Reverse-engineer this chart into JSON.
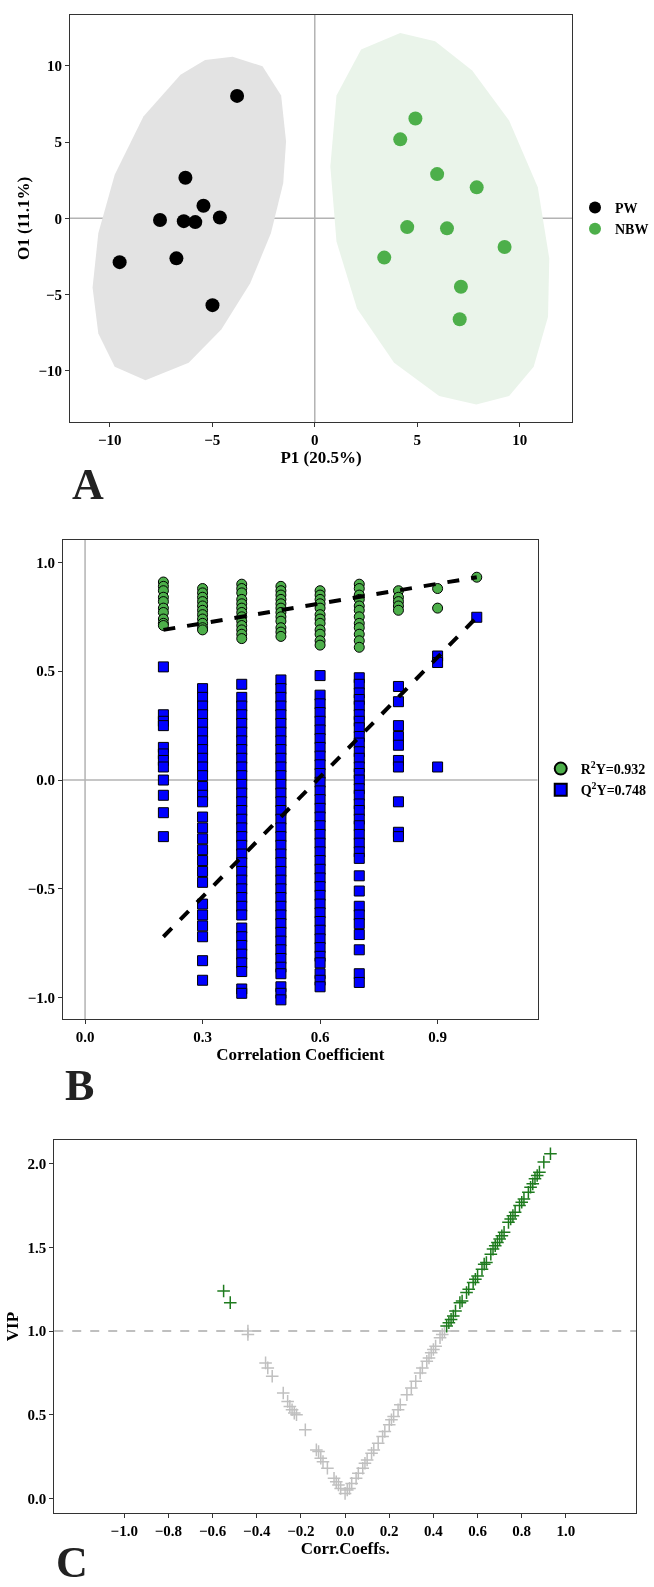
{
  "chart_data": [
    {
      "type": "scatter",
      "xlabel": "P1 (20.5%)",
      "ylabel": "O1 (11.1%)",
      "annotations": [
        "A"
      ],
      "grid": false,
      "legend": "right",
      "xlim": [
        -11.94,
        12.55
      ],
      "ylim": [
        -13.37,
        13.34
      ],
      "xticks": [
        {
          "value": -10,
          "label": "−10"
        },
        {
          "value": -5,
          "label": "−5"
        },
        0,
        5,
        10
      ],
      "yticks": [
        {
          "value": -10,
          "label": "−10"
        },
        {
          "value": -5,
          "label": "−5"
        },
        0,
        5,
        10
      ],
      "ref_lines": [
        {
          "axis": "x",
          "value": 0,
          "color": "#b3b3b3"
        },
        {
          "axis": "y",
          "value": 0,
          "color": "#b3b3b3"
        }
      ],
      "series": [
        {
          "type": "area",
          "color": "#e3e3e3",
          "x": [
            -4.01,
            -2.55,
            -1.64,
            -1.4,
            -1.54,
            -2.14,
            -3.15,
            -4.55,
            -6.15,
            -8.26,
            -9.76,
            -10.56,
            -10.84,
            -10.56,
            -9.76,
            -8.36,
            -6.55,
            -5.35
          ],
          "values": [
            10.6,
            9.97,
            8.05,
            5.04,
            2.3,
            -0.99,
            -4.27,
            -7.29,
            -9.48,
            -10.63,
            -9.75,
            -7.56,
            -4.55,
            -0.99,
            2.85,
            6.68,
            9.42,
            10.38
          ]
        },
        {
          "type": "area",
          "color": "#eaf4ea",
          "x": [
            4.17,
            5.87,
            7.68,
            9.48,
            10.88,
            11.44,
            11.38,
            10.68,
            9.48,
            7.88,
            6.07,
            3.87,
            2.06,
            1.06,
            0.76,
            1.06,
            2.26
          ],
          "values": [
            12.16,
            11.62,
            9.7,
            6.41,
            2.03,
            -2.63,
            -6.47,
            -9.75,
            -11.67,
            -12.22,
            -11.67,
            -9.48,
            -5.92,
            -1.53,
            3.4,
            8.05,
            11.07
          ]
        },
        {
          "name": "PW",
          "color": "#000000",
          "marker": "circle",
          "x": [
            -3.79,
            -6.31,
            -5.43,
            -7.55,
            -6.39,
            -5.83,
            -4.63,
            -9.52,
            -6.75,
            -4.99
          ],
          "values": [
            8.03,
            2.66,
            0.82,
            -0.11,
            -0.19,
            -0.25,
            0.05,
            -2.88,
            -2.63,
            -5.7
          ]
        },
        {
          "name": "NBW",
          "color": "#4daf4a",
          "marker": "circle",
          "x": [
            4.91,
            4.17,
            5.97,
            7.9,
            4.51,
            6.45,
            9.26,
            3.39,
            7.13,
            7.07
          ],
          "values": [
            6.55,
            5.18,
            2.9,
            2.03,
            -0.58,
            -0.66,
            -1.89,
            -2.58,
            -4.49,
            -6.63
          ]
        }
      ]
    },
    {
      "type": "scatter",
      "xlabel": "Correlation Coefficient",
      "annotations": [
        "B"
      ],
      "grid": false,
      "legend": "right",
      "xlim": [
        -0.056,
        1.155
      ],
      "ylim": [
        -1.098,
        1.103
      ],
      "xticks": [
        {
          "value": 0,
          "label": "0.0"
        },
        0.3,
        0.6,
        0.9
      ],
      "yticks": [
        {
          "value": -1,
          "label": "−1.0"
        },
        {
          "value": -0.5,
          "label": "−0.5"
        },
        {
          "value": 0,
          "label": "0.0"
        },
        0.5,
        {
          "value": 1,
          "label": "1.0"
        }
      ],
      "ref_lines": [
        {
          "axis": "x",
          "value": 0,
          "color": "#b3b3b3"
        },
        {
          "axis": "y",
          "value": 0,
          "color": "#b3b3b3"
        }
      ],
      "series": [
        {
          "name": "R$^{2}$Y=0.932",
          "color": "#4daf4a",
          "marker": "circle",
          "x": [
            0.2,
            0.2,
            0.2,
            0.2,
            0.2,
            0.2,
            0.2,
            0.2,
            0.2,
            0.2,
            0.3,
            0.3,
            0.3,
            0.3,
            0.3,
            0.3,
            0.3,
            0.3,
            0.3,
            0.3,
            0.3,
            0.4,
            0.4,
            0.4,
            0.4,
            0.4,
            0.4,
            0.4,
            0.4,
            0.4,
            0.4,
            0.4,
            0.4,
            0.4,
            0.5,
            0.5,
            0.5,
            0.5,
            0.5,
            0.5,
            0.5,
            0.5,
            0.5,
            0.5,
            0.5,
            0.5,
            0.6,
            0.6,
            0.6,
            0.6,
            0.6,
            0.6,
            0.6,
            0.6,
            0.6,
            0.6,
            0.6,
            0.6,
            0.7,
            0.7,
            0.7,
            0.7,
            0.7,
            0.7,
            0.7,
            0.7,
            0.7,
            0.7,
            0.7,
            0.7,
            0.8,
            0.8,
            0.8,
            0.8,
            0.8,
            0.9,
            0.9,
            1.0
          ],
          "values": [
            0.91,
            0.89,
            0.87,
            0.84,
            0.82,
            0.79,
            0.77,
            0.74,
            0.72,
            0.71,
            0.88,
            0.86,
            0.84,
            0.82,
            0.8,
            0.78,
            0.76,
            0.74,
            0.72,
            0.7,
            0.69,
            0.9,
            0.88,
            0.86,
            0.83,
            0.81,
            0.79,
            0.77,
            0.75,
            0.73,
            0.71,
            0.69,
            0.67,
            0.65,
            0.89,
            0.87,
            0.85,
            0.83,
            0.81,
            0.79,
            0.77,
            0.75,
            0.73,
            0.7,
            0.68,
            0.66,
            0.87,
            0.85,
            0.83,
            0.81,
            0.79,
            0.76,
            0.74,
            0.72,
            0.69,
            0.67,
            0.64,
            0.62,
            0.9,
            0.88,
            0.85,
            0.83,
            0.8,
            0.78,
            0.75,
            0.72,
            0.7,
            0.67,
            0.64,
            0.61,
            0.87,
            0.84,
            0.82,
            0.8,
            0.78,
            0.88,
            0.79,
            0.932
          ]
        },
        {
          "name": "Q$^{2}$Y=0.748",
          "color": "#0000ff",
          "marker": "square",
          "x": [
            0.2,
            0.2,
            0.2,
            0.2,
            0.2,
            0.2,
            0.2,
            0.2,
            0.2,
            0.2,
            0.2,
            0.2,
            0.3,
            0.3,
            0.3,
            0.3,
            0.3,
            0.3,
            0.3,
            0.3,
            0.3,
            0.3,
            0.3,
            0.3,
            0.3,
            0.3,
            0.3,
            0.3,
            0.3,
            0.3,
            0.3,
            0.3,
            0.3,
            0.3,
            0.3,
            0.3,
            0.3,
            0.3,
            0.3,
            0.4,
            0.4,
            0.4,
            0.4,
            0.4,
            0.4,
            0.4,
            0.4,
            0.4,
            0.4,
            0.4,
            0.4,
            0.4,
            0.4,
            0.4,
            0.4,
            0.4,
            0.4,
            0.4,
            0.4,
            0.4,
            0.4,
            0.4,
            0.4,
            0.4,
            0.4,
            0.4,
            0.4,
            0.4,
            0.4,
            0.4,
            0.4,
            0.4,
            0.4,
            0.4,
            0.5,
            0.5,
            0.5,
            0.5,
            0.5,
            0.5,
            0.5,
            0.5,
            0.5,
            0.5,
            0.5,
            0.5,
            0.5,
            0.5,
            0.5,
            0.5,
            0.5,
            0.5,
            0.5,
            0.5,
            0.5,
            0.5,
            0.5,
            0.5,
            0.5,
            0.5,
            0.5,
            0.5,
            0.5,
            0.5,
            0.5,
            0.5,
            0.5,
            0.5,
            0.5,
            0.5,
            0.5,
            0.5,
            0.6,
            0.6,
            0.6,
            0.6,
            0.6,
            0.6,
            0.6,
            0.6,
            0.6,
            0.6,
            0.6,
            0.6,
            0.6,
            0.6,
            0.6,
            0.6,
            0.6,
            0.6,
            0.6,
            0.6,
            0.6,
            0.6,
            0.6,
            0.6,
            0.6,
            0.6,
            0.6,
            0.6,
            0.6,
            0.6,
            0.6,
            0.6,
            0.6,
            0.6,
            0.6,
            0.6,
            0.7,
            0.7,
            0.7,
            0.7,
            0.7,
            0.7,
            0.7,
            0.7,
            0.7,
            0.7,
            0.7,
            0.7,
            0.7,
            0.7,
            0.7,
            0.7,
            0.7,
            0.7,
            0.7,
            0.7,
            0.7,
            0.7,
            0.7,
            0.7,
            0.7,
            0.7,
            0.7,
            0.7,
            0.7,
            0.7,
            0.7,
            0.7,
            0.7,
            0.7,
            0.8,
            0.8,
            0.8,
            0.8,
            0.8,
            0.8,
            0.8,
            0.8,
            0.8,
            0.8,
            0.9,
            0.9,
            0.9,
            1.0
          ],
          "values": [
            0.52,
            0.3,
            0.27,
            0.25,
            0.15,
            0.12,
            0.09,
            0.06,
            0.0,
            -0.07,
            -0.15,
            -0.26,
            0.42,
            0.38,
            0.34,
            0.3,
            0.26,
            0.22,
            0.18,
            0.14,
            0.1,
            0.06,
            0.02,
            -0.03,
            -0.07,
            -0.1,
            -0.17,
            -0.22,
            -0.27,
            -0.32,
            -0.37,
            -0.42,
            -0.47,
            -0.57,
            -0.62,
            -0.67,
            -0.72,
            -0.83,
            -0.92,
            0.44,
            0.38,
            0.34,
            0.3,
            0.26,
            0.22,
            0.18,
            0.14,
            0.1,
            0.06,
            0.02,
            -0.02,
            -0.06,
            -0.1,
            -0.14,
            -0.18,
            -0.22,
            -0.26,
            -0.3,
            -0.34,
            -0.38,
            -0.42,
            -0.46,
            -0.5,
            -0.54,
            -0.58,
            -0.62,
            -0.68,
            -0.72,
            -0.76,
            -0.8,
            -0.84,
            -0.88,
            -0.96,
            -0.98,
            0.46,
            0.42,
            0.38,
            0.34,
            0.3,
            0.26,
            0.22,
            0.18,
            0.14,
            0.1,
            0.06,
            0.02,
            -0.02,
            -0.06,
            -0.1,
            -0.14,
            -0.18,
            -0.22,
            -0.26,
            -0.3,
            -0.34,
            -0.38,
            -0.42,
            -0.46,
            -0.5,
            -0.54,
            -0.58,
            -0.62,
            -0.66,
            -0.7,
            -0.74,
            -0.78,
            -0.82,
            -0.86,
            -0.89,
            -0.95,
            -0.98,
            -1.01,
            0.48,
            0.39,
            0.35,
            0.31,
            0.27,
            0.23,
            0.19,
            0.15,
            0.11,
            0.07,
            0.03,
            -0.01,
            -0.05,
            -0.09,
            -0.13,
            -0.17,
            -0.21,
            -0.25,
            -0.29,
            -0.33,
            -0.37,
            -0.41,
            -0.45,
            -0.49,
            -0.53,
            -0.57,
            -0.61,
            -0.65,
            -0.69,
            -0.73,
            -0.77,
            -0.81,
            -0.84,
            -0.89,
            -0.92,
            -0.95,
            0.47,
            0.44,
            0.4,
            0.37,
            0.34,
            0.3,
            0.27,
            0.24,
            0.2,
            0.17,
            0.13,
            0.1,
            0.06,
            0.03,
            0.0,
            -0.04,
            -0.07,
            -0.11,
            -0.14,
            -0.18,
            -0.21,
            -0.25,
            -0.29,
            -0.33,
            -0.36,
            -0.44,
            -0.51,
            -0.58,
            -0.62,
            -0.66,
            -0.71,
            -0.78,
            -0.89,
            -0.93,
            0.43,
            0.36,
            0.25,
            0.2,
            0.16,
            0.09,
            0.06,
            -0.1,
            -0.24,
            -0.26,
            0.57,
            0.54,
            0.06,
            0.748
          ]
        },
        {
          "type": "line",
          "color": "#000000",
          "line_style": "dashed",
          "x": [
            0.2,
            1.0
          ],
          "values": [
            0.69,
            0.932
          ]
        },
        {
          "type": "line",
          "color": "#000000",
          "line_style": "dashed",
          "x": [
            0.2,
            1.0
          ],
          "values": [
            -0.72,
            0.748
          ]
        }
      ]
    },
    {
      "type": "scatter",
      "xlabel": "Corr.Coeffs.",
      "ylabel": "VIP",
      "annotations": [
        "C"
      ],
      "grid": false,
      "marker": "cross",
      "xlim": [
        -1.317,
        1.318
      ],
      "ylim": [
        -0.087,
        2.142
      ],
      "xticks": [
        {
          "value": -1,
          "label": "−1.0"
        },
        {
          "value": -0.8,
          "label": "−0.8"
        },
        {
          "value": -0.6,
          "label": "−0.6"
        },
        {
          "value": -0.4,
          "label": "−0.4"
        },
        {
          "value": -0.2,
          "label": "−0.2"
        },
        {
          "value": 0,
          "label": "0.0"
        },
        0.2,
        0.4,
        0.6,
        0.8,
        {
          "value": 1,
          "label": "1.0"
        }
      ],
      "yticks": [
        {
          "value": 0,
          "label": "0.0"
        },
        0.5,
        {
          "value": 1,
          "label": "1.0"
        },
        1.5,
        {
          "value": 2,
          "label": "2.0"
        }
      ],
      "ref_lines": [
        {
          "axis": "y",
          "value": 1,
          "color": "#aaaaaa",
          "line_style": "dashed"
        }
      ],
      "series": [
        {
          "color": "#c0c0c0",
          "x": [
            -0.44,
            -0.44,
            -0.36,
            -0.35,
            -0.33,
            -0.28,
            -0.26,
            -0.25,
            -0.24,
            -0.23,
            -0.22,
            -0.18,
            -0.13,
            -0.12,
            -0.11,
            -0.1,
            -0.08,
            -0.05,
            -0.04,
            -0.03,
            -0.02,
            0.0,
            0.01,
            0.02,
            0.03,
            0.05,
            0.06,
            0.08,
            0.09,
            0.1,
            0.12,
            0.13,
            0.15,
            0.17,
            0.18,
            0.2,
            0.21,
            0.22,
            0.24,
            0.25,
            0.28,
            0.3,
            0.32,
            0.34,
            0.35,
            0.37,
            0.38,
            0.39,
            0.4,
            0.41,
            0.43,
            0.44,
            0.45
          ],
          "values": [
            1.0,
            0.98,
            0.81,
            0.78,
            0.73,
            0.63,
            0.58,
            0.55,
            0.53,
            0.51,
            0.5,
            0.41,
            0.29,
            0.28,
            0.24,
            0.22,
            0.18,
            0.12,
            0.1,
            0.08,
            0.06,
            0.03,
            0.05,
            0.06,
            0.09,
            0.12,
            0.15,
            0.18,
            0.21,
            0.23,
            0.27,
            0.29,
            0.33,
            0.37,
            0.4,
            0.44,
            0.47,
            0.49,
            0.53,
            0.56,
            0.62,
            0.66,
            0.7,
            0.75,
            0.78,
            0.82,
            0.84,
            0.87,
            0.89,
            0.91,
            0.96,
            0.98,
            1.0
          ]
        },
        {
          "color": "#1e7b1e",
          "x": [
            -0.55,
            -0.52,
            0.46,
            0.47,
            0.48,
            0.49,
            0.5,
            0.52,
            0.53,
            0.55,
            0.56,
            0.58,
            0.59,
            0.6,
            0.62,
            0.63,
            0.64,
            0.66,
            0.67,
            0.68,
            0.69,
            0.7,
            0.71,
            0.72,
            0.74,
            0.75,
            0.76,
            0.77,
            0.79,
            0.8,
            0.81,
            0.83,
            0.84,
            0.85,
            0.86,
            0.87,
            0.88,
            0.9,
            0.93
          ],
          "values": [
            1.24,
            1.17,
            1.03,
            1.05,
            1.07,
            1.09,
            1.12,
            1.17,
            1.18,
            1.23,
            1.25,
            1.29,
            1.31,
            1.33,
            1.37,
            1.4,
            1.41,
            1.46,
            1.49,
            1.51,
            1.53,
            1.55,
            1.57,
            1.59,
            1.65,
            1.67,
            1.69,
            1.71,
            1.75,
            1.77,
            1.79,
            1.83,
            1.86,
            1.88,
            1.91,
            1.93,
            1.95,
            2.01,
            2.06
          ]
        }
      ]
    }
  ]
}
